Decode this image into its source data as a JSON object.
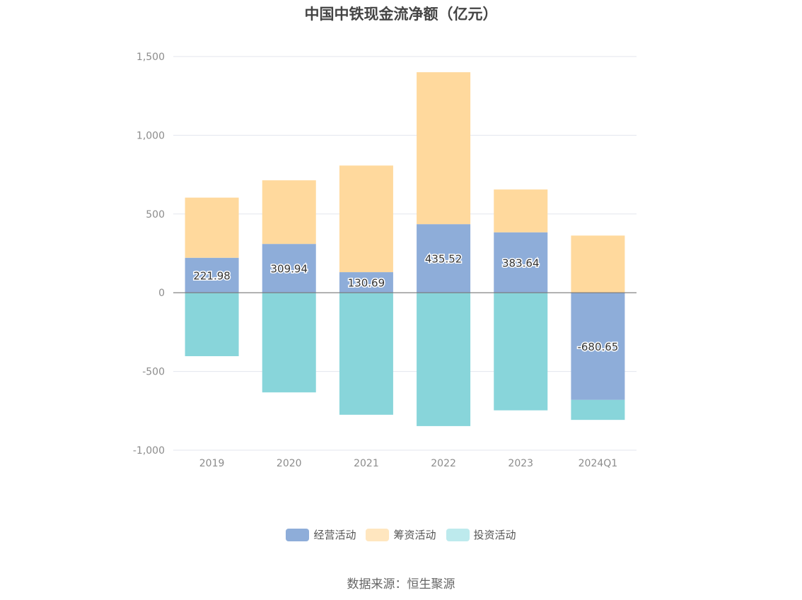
{
  "title": "中国中铁现金流净额（亿元）",
  "source": "数据来源：恒生聚源",
  "chart_data": {
    "type": "bar",
    "stacked": true,
    "title": "中国中铁现金流净额（亿元）",
    "categories": [
      "2019",
      "2020",
      "2021",
      "2022",
      "2023",
      "2024Q1"
    ],
    "ylim": [
      -1000,
      1500
    ],
    "yticks": [
      -1000,
      -500,
      0,
      500,
      1000,
      1500
    ],
    "ytick_labels": [
      "-1,000",
      "-500",
      "0",
      "500",
      "1,000",
      "1,500"
    ],
    "series": [
      {
        "name": "经营活动",
        "color": "#8eadd9",
        "values": [
          221.98,
          309.94,
          130.69,
          435.52,
          383.64,
          -680.65
        ],
        "labels": [
          "221.98",
          "309.94",
          "130.69",
          "435.52",
          "383.64",
          "-680.65"
        ]
      },
      {
        "name": "筹资活动",
        "color": "#ffd99d",
        "values": [
          382,
          404,
          677,
          965,
          272,
          363
        ]
      },
      {
        "name": "投资活动",
        "color": "#88d5da",
        "values": [
          -403,
          -633,
          -775,
          -847,
          -747,
          -127
        ]
      }
    ],
    "legend": [
      {
        "name": "经营活动",
        "color": "#8eadd9"
      },
      {
        "name": "筹资活动",
        "color": "#ffe6bf"
      },
      {
        "name": "投资活动",
        "color": "#bdeaed"
      }
    ],
    "legend_position": "bottom"
  }
}
